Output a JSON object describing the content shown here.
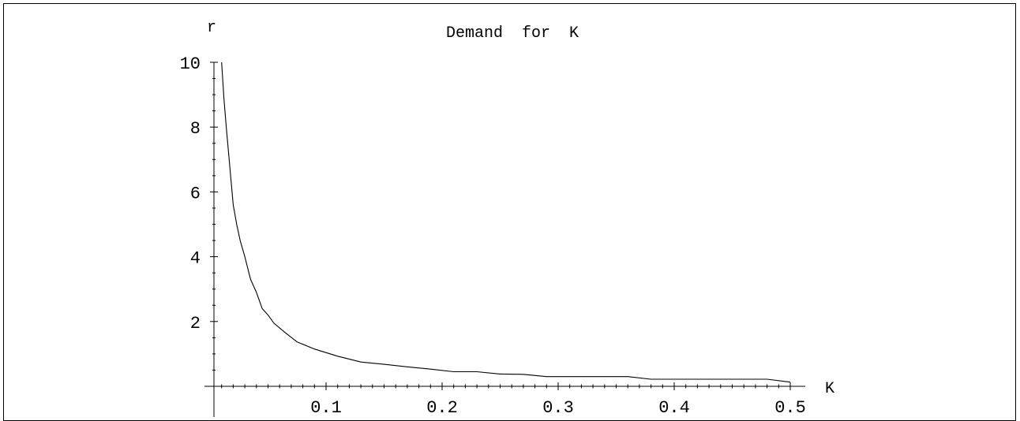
{
  "chart_data": {
    "type": "line",
    "title": "Demand  for  K",
    "xlabel": "K",
    "ylabel": "r",
    "xlim": [
      0,
      0.5
    ],
    "ylim": [
      0,
      10
    ],
    "x_ticks": [
      0.1,
      0.2,
      0.3,
      0.4,
      0.5
    ],
    "x_tick_labels": [
      "0.1",
      "0.2",
      "0.3",
      "0.4",
      "0.5"
    ],
    "y_ticks": [
      2,
      4,
      6,
      8,
      10
    ],
    "y_tick_labels": [
      "2",
      "4",
      "6",
      "8",
      "10"
    ],
    "grid": false,
    "series": [
      {
        "x": [
          0.01,
          0.012,
          0.014,
          0.017,
          0.02,
          0.023,
          0.026,
          0.03,
          0.035,
          0.04,
          0.045,
          0.05,
          0.055,
          0.065,
          0.075,
          0.09,
          0.11,
          0.13,
          0.15,
          0.17,
          0.19,
          0.21,
          0.23,
          0.25,
          0.27,
          0.29,
          0.31,
          0.33,
          0.36,
          0.38,
          0.42,
          0.46,
          0.48,
          0.5
        ],
        "y": [
          10,
          8.9,
          8.0,
          6.8,
          5.6,
          5.0,
          4.5,
          4.0,
          3.3,
          2.9,
          2.4,
          2.2,
          1.95,
          1.65,
          1.37,
          1.15,
          0.93,
          0.75,
          0.68,
          0.6,
          0.53,
          0.45,
          0.45,
          0.38,
          0.37,
          0.3,
          0.3,
          0.3,
          0.3,
          0.22,
          0.22,
          0.22,
          0.22,
          0.13
        ]
      }
    ]
  }
}
